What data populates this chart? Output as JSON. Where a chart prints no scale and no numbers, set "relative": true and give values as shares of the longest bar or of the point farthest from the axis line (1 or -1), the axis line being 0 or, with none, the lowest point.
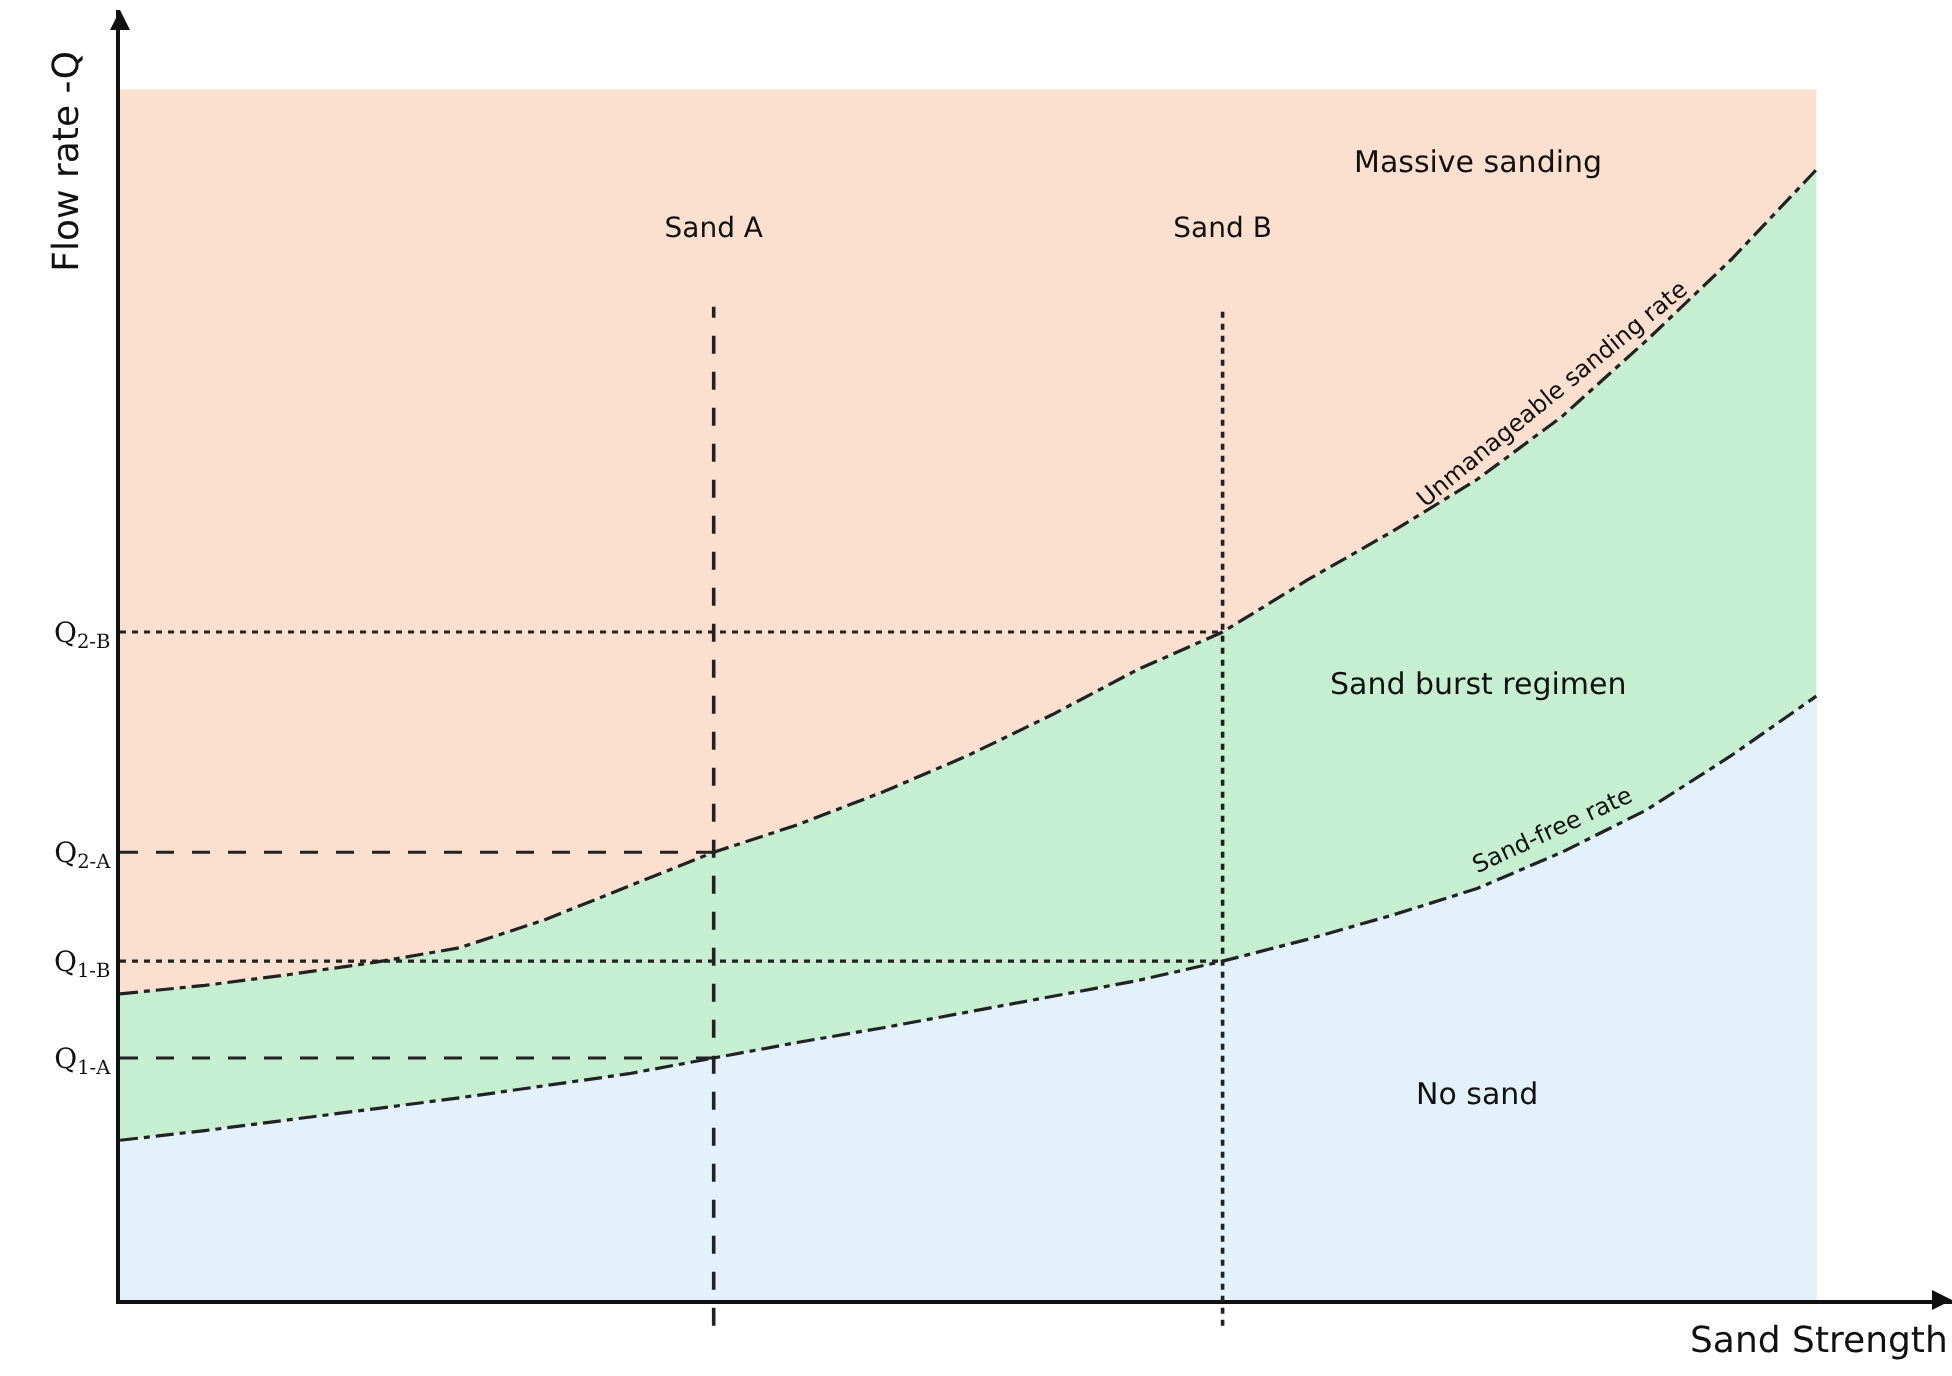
{
  "chart_data": {
    "type": "area",
    "relative": true,
    "xlabel": "Sand Strength",
    "ylabel": "Flow rate -Q",
    "categories": [
      null,
      null,
      null,
      null,
      null,
      null,
      null,
      "Sand A",
      null,
      null,
      null,
      null,
      null,
      "Sand B",
      null,
      null,
      null,
      null,
      null,
      null,
      null
    ],
    "series": [
      {
        "color": "#fbe0d0",
        "values": [
          1,
          1,
          1,
          1,
          1,
          1,
          1,
          1,
          1,
          1,
          1,
          1,
          1,
          1,
          1,
          1,
          1,
          1,
          1,
          1,
          1
        ]
      },
      {
        "name": "Unmanageable sanding rate",
        "color": "#c5efd0",
        "values": [
          0.253,
          0.26,
          0.269,
          0.279,
          0.291,
          0.314,
          0.342,
          0.37,
          0.393,
          0.42,
          0.45,
          0.484,
          0.521,
          0.552,
          0.595,
          0.635,
          0.678,
          0.73,
          0.793,
          0.86,
          0.934
        ]
      },
      {
        "name": "Sand-free rate",
        "color": "#e3f1fb",
        "values": [
          0.132,
          0.14,
          0.149,
          0.158,
          0.167,
          0.177,
          0.187,
          0.2,
          0.213,
          0.225,
          0.238,
          0.251,
          0.264,
          0.28,
          0.298,
          0.318,
          0.34,
          0.37,
          0.405,
          0.45,
          0.499
        ]
      }
    ],
    "ref_lines": [
      {
        "axis": "x",
        "value": "Sand A",
        "line_style": "dashed"
      },
      {
        "axis": "x",
        "value": "Sand B",
        "line_style": "dotted"
      },
      {
        "axis": "y",
        "value": 0.552,
        "label": "Q$_{2-B}$",
        "line_style": "dotted"
      },
      {
        "axis": "y",
        "value": 0.37,
        "label": "Q$_{2-A}$",
        "line_style": "dashed"
      },
      {
        "axis": "y",
        "value": 0.28,
        "label": "Q$_{1-B}$",
        "line_style": "dotted"
      },
      {
        "axis": "y",
        "value": 0.2,
        "label": "Q$_{1-A}$",
        "line_style": "dashed"
      }
    ],
    "annotations": [
      "Massive sanding",
      "Sand burst regimen",
      "No sand"
    ],
    "line_style": "dashed",
    "legend": false,
    "grid": false
  }
}
